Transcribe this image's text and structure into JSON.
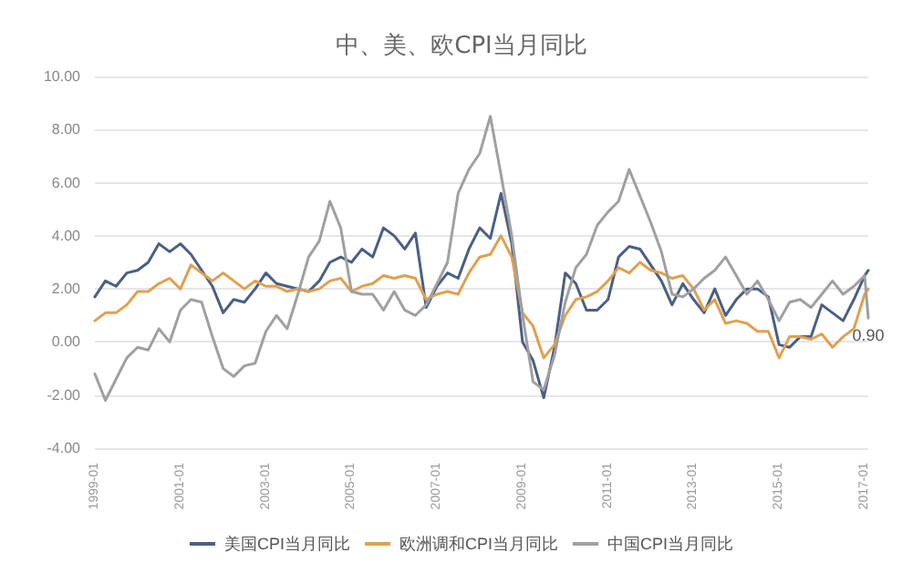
{
  "chart_data": {
    "type": "line",
    "title": "中、美、欧CPI当月同比",
    "x": [
      "1999-01",
      "1999-04",
      "1999-07",
      "1999-10",
      "2000-01",
      "2000-04",
      "2000-07",
      "2000-10",
      "2001-01",
      "2001-04",
      "2001-07",
      "2001-10",
      "2002-01",
      "2002-04",
      "2002-07",
      "2002-10",
      "2003-01",
      "2003-04",
      "2003-07",
      "2003-10",
      "2004-01",
      "2004-04",
      "2004-07",
      "2004-10",
      "2005-01",
      "2005-04",
      "2005-07",
      "2005-10",
      "2006-01",
      "2006-04",
      "2006-07",
      "2006-10",
      "2007-01",
      "2007-04",
      "2007-07",
      "2007-10",
      "2008-01",
      "2008-04",
      "2008-07",
      "2008-10",
      "2009-01",
      "2009-04",
      "2009-07",
      "2009-10",
      "2010-01",
      "2010-04",
      "2010-07",
      "2010-10",
      "2011-01",
      "2011-04",
      "2011-07",
      "2011-10",
      "2012-01",
      "2012-04",
      "2012-07",
      "2012-10",
      "2013-01",
      "2013-04",
      "2013-07",
      "2013-10",
      "2014-01",
      "2014-04",
      "2014-07",
      "2014-10",
      "2015-01",
      "2015-04",
      "2015-07",
      "2015-10",
      "2016-01",
      "2016-04",
      "2016-07",
      "2016-10",
      "2017-01",
      "2017-02"
    ],
    "series": [
      {
        "name": "美国CPI当月同比",
        "color": "#4a5f85",
        "values": [
          1.7,
          2.3,
          2.1,
          2.6,
          2.7,
          3.0,
          3.7,
          3.4,
          3.7,
          3.3,
          2.7,
          2.1,
          1.1,
          1.6,
          1.5,
          2.0,
          2.6,
          2.2,
          2.1,
          2.0,
          1.9,
          2.3,
          3.0,
          3.2,
          3.0,
          3.5,
          3.2,
          4.3,
          4.0,
          3.5,
          4.1,
          1.3,
          2.1,
          2.6,
          2.4,
          3.5,
          4.3,
          3.9,
          5.6,
          3.7,
          0.0,
          -0.7,
          -2.1,
          -0.2,
          2.6,
          2.2,
          1.2,
          1.2,
          1.6,
          3.2,
          3.6,
          3.5,
          2.9,
          2.3,
          1.4,
          2.2,
          1.6,
          1.1,
          2.0,
          1.0,
          1.6,
          2.0,
          2.0,
          1.7,
          -0.1,
          -0.2,
          0.2,
          0.2,
          1.4,
          1.1,
          0.8,
          1.6,
          2.5,
          2.7
        ]
      },
      {
        "name": "欧洲调和CPI当月同比",
        "color": "#e0a050",
        "values": [
          0.8,
          1.1,
          1.1,
          1.4,
          1.9,
          1.9,
          2.2,
          2.4,
          2.0,
          2.9,
          2.6,
          2.3,
          2.6,
          2.3,
          2.0,
          2.3,
          2.1,
          2.1,
          1.9,
          2.0,
          1.9,
          2.0,
          2.3,
          2.4,
          1.9,
          2.1,
          2.2,
          2.5,
          2.4,
          2.5,
          2.4,
          1.6,
          1.8,
          1.9,
          1.8,
          2.6,
          3.2,
          3.3,
          4.0,
          3.2,
          1.1,
          0.6,
          -0.6,
          -0.1,
          1.0,
          1.6,
          1.7,
          1.9,
          2.3,
          2.8,
          2.6,
          3.0,
          2.7,
          2.6,
          2.4,
          2.5,
          2.0,
          1.2,
          1.6,
          0.7,
          0.8,
          0.7,
          0.4,
          0.4,
          -0.6,
          0.2,
          0.2,
          0.1,
          0.3,
          -0.2,
          0.2,
          0.5,
          1.8,
          2.0
        ]
      },
      {
        "name": "中国CPI当月同比",
        "color": "#a0a0a0",
        "values": [
          -1.2,
          -2.2,
          -1.4,
          -0.6,
          -0.2,
          -0.3,
          0.5,
          0.0,
          1.2,
          1.6,
          1.5,
          0.2,
          -1.0,
          -1.3,
          -0.9,
          -0.8,
          0.4,
          1.0,
          0.5,
          1.8,
          3.2,
          3.8,
          5.3,
          4.3,
          1.9,
          1.8,
          1.8,
          1.2,
          1.9,
          1.2,
          1.0,
          1.4,
          2.2,
          3.0,
          5.6,
          6.5,
          7.1,
          8.5,
          6.3,
          4.0,
          1.0,
          -1.5,
          -1.8,
          -0.5,
          1.5,
          2.8,
          3.3,
          4.4,
          4.9,
          5.3,
          6.5,
          5.5,
          4.5,
          3.4,
          1.8,
          1.7,
          2.0,
          2.4,
          2.7,
          3.2,
          2.5,
          1.8,
          2.3,
          1.6,
          0.8,
          1.5,
          1.6,
          1.3,
          1.8,
          2.3,
          1.8,
          2.1,
          2.5,
          0.9
        ]
      }
    ],
    "annotations": [
      {
        "text": "0.90",
        "x": "2017-02",
        "y": 0.9
      }
    ],
    "xlim": [
      "1999-01",
      "2017-02"
    ],
    "ylim": [
      -4,
      10
    ],
    "yticks": [
      {
        "value": -4,
        "label": "-4.00"
      },
      {
        "value": -2,
        "label": "-2.00"
      },
      {
        "value": 0,
        "label": "0.00"
      },
      {
        "value": 2,
        "label": "2.00"
      },
      {
        "value": 4,
        "label": "4.00"
      },
      {
        "value": 6,
        "label": "6.00"
      },
      {
        "value": 8,
        "label": "8.00"
      },
      {
        "value": 10,
        "label": "10.00"
      }
    ],
    "xticks": [
      {
        "value": "1999-01",
        "label": "1999-01"
      },
      {
        "value": "2001-01",
        "label": "2001-01"
      },
      {
        "value": "2003-01",
        "label": "2003-01"
      },
      {
        "value": "2005-01",
        "label": "2005-01"
      },
      {
        "value": "2007-01",
        "label": "2007-01"
      },
      {
        "value": "2009-01",
        "label": "2009-01"
      },
      {
        "value": "2011-01",
        "label": "2011-01"
      },
      {
        "value": "2013-01",
        "label": "2013-01"
      },
      {
        "value": "2015-01",
        "label": "2015-01"
      },
      {
        "value": "2017-01",
        "label": "2017-01"
      }
    ],
    "grid": "y",
    "legend": "bottom",
    "marker": "none",
    "line_style": "solid"
  }
}
